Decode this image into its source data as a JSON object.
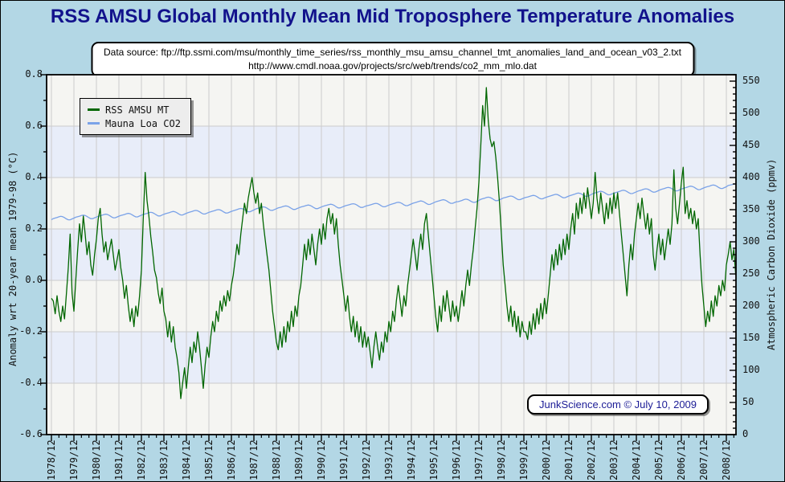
{
  "title": "RSS AMSU Global Monthly Mean Mid Troposphere Temperature Anomalies",
  "data_source_box": {
    "line1": "Data source: ftp://ftp.ssmi.com/msu/monthly_time_series/rss_monthly_msu_amsu_channel_tmt_anomalies_land_and_ocean_v03_2.txt",
    "line2": "http://www.cmdl.noaa.gov/projects/src/web/trends/co2_mm_mlo.dat"
  },
  "stamp": "JunkScience.com © July 10, 2009",
  "legend": {
    "items": [
      {
        "label": "RSS AMSU MT",
        "color": "#006600"
      },
      {
        "label": "Mauna Loa CO2",
        "color": "#7aa2e8"
      }
    ]
  },
  "axes": {
    "left": {
      "title": "Anomaly wrt 20-year mean 1979-98 (°C)",
      "ticks": [
        "0.8",
        "0.6",
        "0.4",
        "0.2",
        "0.0",
        "-0.2",
        "-0.4",
        "-0.6"
      ]
    },
    "right": {
      "title": "Atmospheric Carbon Dioxide (ppmv)",
      "ticks": [
        "550",
        "500",
        "450",
        "400",
        "350",
        "300",
        "250",
        "200",
        "150",
        "100",
        "50",
        "0"
      ]
    },
    "x": {
      "labels": [
        "1978/12",
        "1979/12",
        "1980/12",
        "1981/12",
        "1982/12",
        "1983/12",
        "1984/12",
        "1985/12",
        "1986/12",
        "1987/12",
        "1988/12",
        "1989/12",
        "1990/12",
        "1991/12",
        "1992/12",
        "1993/12",
        "1994/12",
        "1995/12",
        "1996/12",
        "1997/12",
        "1998/12",
        "1999/12",
        "2000/12",
        "2001/12",
        "2002/12",
        "2003/12",
        "2004/12",
        "2005/12",
        "2006/12",
        "2007/12",
        "2008/12"
      ]
    }
  },
  "colors": {
    "background": "#b3d7e5",
    "title": "#12128c",
    "band_main": "#f5f5f2",
    "band_alt": "#e8edf9",
    "grid": "#cccccc",
    "frame": "#000000",
    "temp_line": "#006600",
    "co2_line": "#7aa2e8",
    "stamp_text": "#1c1c96"
  },
  "chart_data": {
    "type": "line",
    "title": "RSS AMSU Global Monthly Mean Mid Troposphere Temperature Anomalies",
    "x_start": "1978/12",
    "x_end": "2009/05",
    "x_step": "monthly",
    "xlabel": "",
    "ylabel_left": "Anomaly wrt 20-year mean 1979-98 (°C)",
    "ylabel_right": "Atmospheric Carbon Dioxide (ppmv)",
    "ylim_left": [
      -0.6,
      0.8
    ],
    "ylim_right": [
      0,
      560
    ],
    "grid": true,
    "legend_position": "upper-left",
    "series": [
      {
        "name": "RSS AMSU MT",
        "axis": "left",
        "color": "#006600",
        "values": [
          -0.07,
          -0.08,
          -0.13,
          -0.06,
          -0.12,
          -0.16,
          -0.1,
          -0.15,
          -0.05,
          0.05,
          0.18,
          -0.05,
          -0.12,
          0.0,
          0.12,
          0.22,
          0.15,
          0.25,
          0.18,
          0.1,
          0.15,
          0.06,
          0.02,
          0.1,
          0.16,
          0.24,
          0.28,
          0.18,
          0.11,
          0.15,
          0.08,
          0.12,
          0.16,
          0.1,
          0.04,
          0.08,
          0.12,
          0.05,
          0.0,
          -0.07,
          -0.02,
          -0.1,
          -0.16,
          -0.11,
          -0.18,
          -0.1,
          -0.14,
          -0.06,
          0.04,
          0.24,
          0.42,
          0.31,
          0.25,
          0.17,
          0.11,
          0.04,
          0.01,
          -0.05,
          -0.09,
          -0.03,
          -0.12,
          -0.15,
          -0.22,
          -0.16,
          -0.24,
          -0.18,
          -0.26,
          -0.3,
          -0.36,
          -0.46,
          -0.4,
          -0.34,
          -0.42,
          -0.34,
          -0.26,
          -0.32,
          -0.24,
          -0.28,
          -0.2,
          -0.26,
          -0.34,
          -0.42,
          -0.33,
          -0.26,
          -0.3,
          -0.22,
          -0.16,
          -0.2,
          -0.12,
          -0.16,
          -0.08,
          -0.12,
          -0.06,
          -0.1,
          -0.04,
          -0.08,
          -0.02,
          0.02,
          0.08,
          0.14,
          0.1,
          0.18,
          0.24,
          0.3,
          0.26,
          0.32,
          0.36,
          0.4,
          0.34,
          0.3,
          0.34,
          0.26,
          0.3,
          0.22,
          0.16,
          0.1,
          0.04,
          -0.04,
          -0.12,
          -0.18,
          -0.24,
          -0.27,
          -0.2,
          -0.26,
          -0.18,
          -0.24,
          -0.16,
          -0.2,
          -0.12,
          -0.18,
          -0.1,
          -0.14,
          -0.06,
          -0.02,
          0.06,
          0.14,
          0.08,
          0.16,
          0.1,
          0.18,
          0.12,
          0.06,
          0.14,
          0.2,
          0.14,
          0.22,
          0.16,
          0.24,
          0.28,
          0.22,
          0.26,
          0.18,
          0.24,
          0.14,
          0.06,
          0.0,
          -0.06,
          -0.12,
          -0.06,
          -0.14,
          -0.2,
          -0.14,
          -0.22,
          -0.16,
          -0.24,
          -0.18,
          -0.26,
          -0.2,
          -0.26,
          -0.22,
          -0.28,
          -0.34,
          -0.26,
          -0.2,
          -0.26,
          -0.31,
          -0.24,
          -0.28,
          -0.2,
          -0.24,
          -0.16,
          -0.2,
          -0.12,
          -0.16,
          -0.08,
          -0.02,
          -0.08,
          -0.14,
          -0.06,
          -0.1,
          -0.02,
          0.04,
          0.1,
          0.16,
          0.1,
          0.04,
          0.12,
          0.18,
          0.12,
          0.22,
          0.26,
          0.18,
          0.1,
          0.02,
          -0.06,
          -0.14,
          -0.2,
          -0.1,
          -0.16,
          -0.06,
          -0.12,
          -0.04,
          -0.1,
          -0.16,
          -0.08,
          -0.14,
          -0.1,
          -0.16,
          -0.1,
          -0.04,
          -0.1,
          -0.02,
          0.04,
          -0.02,
          0.06,
          0.12,
          0.2,
          0.28,
          0.38,
          0.52,
          0.68,
          0.6,
          0.75,
          0.62,
          0.55,
          0.52,
          0.54,
          0.48,
          0.4,
          0.3,
          0.18,
          0.06,
          -0.02,
          -0.1,
          -0.16,
          -0.1,
          -0.18,
          -0.12,
          -0.2,
          -0.14,
          -0.22,
          -0.16,
          -0.2,
          -0.2,
          -0.23,
          -0.16,
          -0.21,
          -0.13,
          -0.19,
          -0.11,
          -0.17,
          -0.09,
          -0.15,
          -0.07,
          -0.13,
          -0.06,
          0.02,
          0.1,
          0.04,
          0.12,
          0.06,
          0.14,
          0.08,
          0.16,
          0.1,
          0.18,
          0.12,
          0.2,
          0.26,
          0.18,
          0.3,
          0.24,
          0.32,
          0.26,
          0.34,
          0.28,
          0.36,
          0.3,
          0.24,
          0.3,
          0.42,
          0.32,
          0.26,
          0.34,
          0.28,
          0.22,
          0.3,
          0.24,
          0.32,
          0.26,
          0.34,
          0.28,
          0.34,
          0.26,
          0.18,
          0.1,
          0.02,
          -0.06,
          0.06,
          0.14,
          0.08,
          0.18,
          0.24,
          0.3,
          0.24,
          0.32,
          0.26,
          0.2,
          0.26,
          0.18,
          0.24,
          0.1,
          0.04,
          0.12,
          0.18,
          0.1,
          0.16,
          0.08,
          0.14,
          0.2,
          0.14,
          0.22,
          0.43,
          0.28,
          0.22,
          0.3,
          0.38,
          0.44,
          0.26,
          0.31,
          0.24,
          0.28,
          0.22,
          0.27,
          0.2,
          0.24,
          0.1,
          -0.02,
          -0.1,
          -0.18,
          -0.12,
          -0.16,
          -0.08,
          -0.14,
          -0.06,
          -0.1,
          -0.02,
          -0.06,
          0.0,
          -0.04,
          0.06,
          0.1,
          0.15,
          0.08,
          0.12,
          0.02
        ]
      },
      {
        "name": "Mauna Loa CO2",
        "axis": "right",
        "color": "#7aa2e8",
        "annual_start_year": 1979,
        "annual_means_ppmv": [
          336.8,
          338.7,
          340.1,
          341.4,
          343.0,
          344.4,
          346.0,
          347.4,
          349.2,
          351.6,
          353.1,
          354.4,
          355.6,
          356.4,
          357.1,
          358.8,
          360.8,
          362.6,
          363.7,
          366.7,
          368.4,
          369.5,
          371.1,
          373.2,
          375.8,
          377.5,
          379.8,
          381.9,
          383.8,
          385.6,
          387.4
        ],
        "seasonal_cycle_ppmv": [
          0.2,
          0.9,
          1.6,
          2.5,
          3.0,
          2.3,
          0.7,
          -1.4,
          -3.0,
          -3.1,
          -1.9,
          -0.8
        ]
      }
    ]
  }
}
